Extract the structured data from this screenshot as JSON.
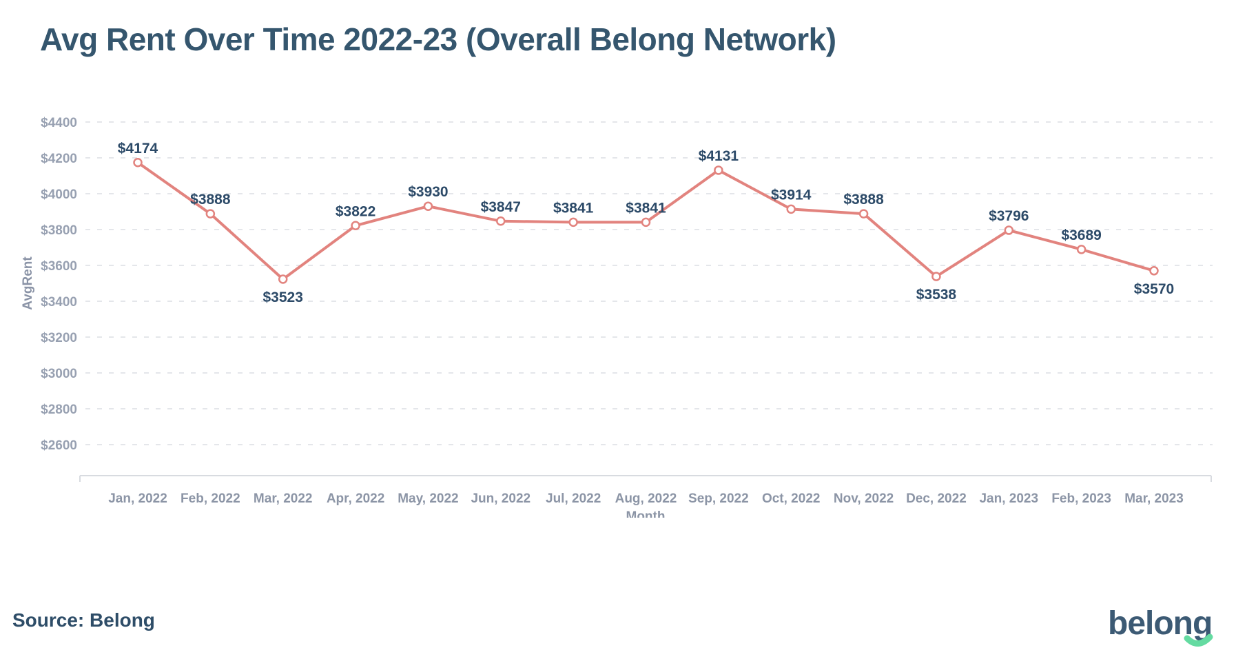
{
  "header": {
    "title": "Avg Rent Over Time 2022-23 (Overall Belong Network)"
  },
  "chart_data": {
    "type": "line",
    "title": "Avg Rent Over Time 2022-23 (Overall Belong Network)",
    "categories": [
      "Jan, 2022",
      "Feb, 2022",
      "Mar, 2022",
      "Apr, 2022",
      "May, 2022",
      "Jun, 2022",
      "Jul, 2022",
      "Aug, 2022",
      "Sep, 2022",
      "Oct, 2022",
      "Nov, 2022",
      "Dec, 2022",
      "Jan, 2023",
      "Feb, 2023",
      "Mar, 2023"
    ],
    "series": [
      {
        "name": "AvgRent",
        "values": [
          4174,
          3888,
          3523,
          3822,
          3930,
          3847,
          3841,
          3841,
          4131,
          3914,
          3888,
          3538,
          3796,
          3689,
          3570
        ],
        "color": "#E2837E"
      }
    ],
    "point_labels": [
      "$4174",
      "$3888",
      "$3523",
      "$3822",
      "$3930",
      "$3847",
      "$3841",
      "$3841",
      "$4131",
      "$3914",
      "$3888",
      "$3538",
      "$3796",
      "$3689",
      "$3570"
    ],
    "point_label_positions": [
      "above",
      "above",
      "below",
      "above",
      "above",
      "above",
      "above",
      "above",
      "above",
      "above",
      "above",
      "below",
      "above",
      "above",
      "below"
    ],
    "xlabel": "Month",
    "ylabel": "AvgRent",
    "ylim": [
      2600,
      4400
    ],
    "y_tick_step": 200,
    "y_tick_labels": [
      "$2600",
      "$2800",
      "$3000",
      "$3200",
      "$3400",
      "$3600",
      "$3800",
      "$4000",
      "$4200",
      "$4400"
    ],
    "grid": "dashed-horizontal",
    "legend": "none",
    "marker_style": "open-circle",
    "colors": {
      "line": "#E2837E",
      "marker_fill": "#FFFFFF",
      "data_label": "#2C4A68",
      "tick_label": "#97A0B1",
      "grid": "#E4E6EA",
      "axis": "#D8DBE0",
      "title": "#35566E"
    }
  },
  "footer": {
    "source_label": "Source: Belong",
    "logo_text": "belong"
  }
}
